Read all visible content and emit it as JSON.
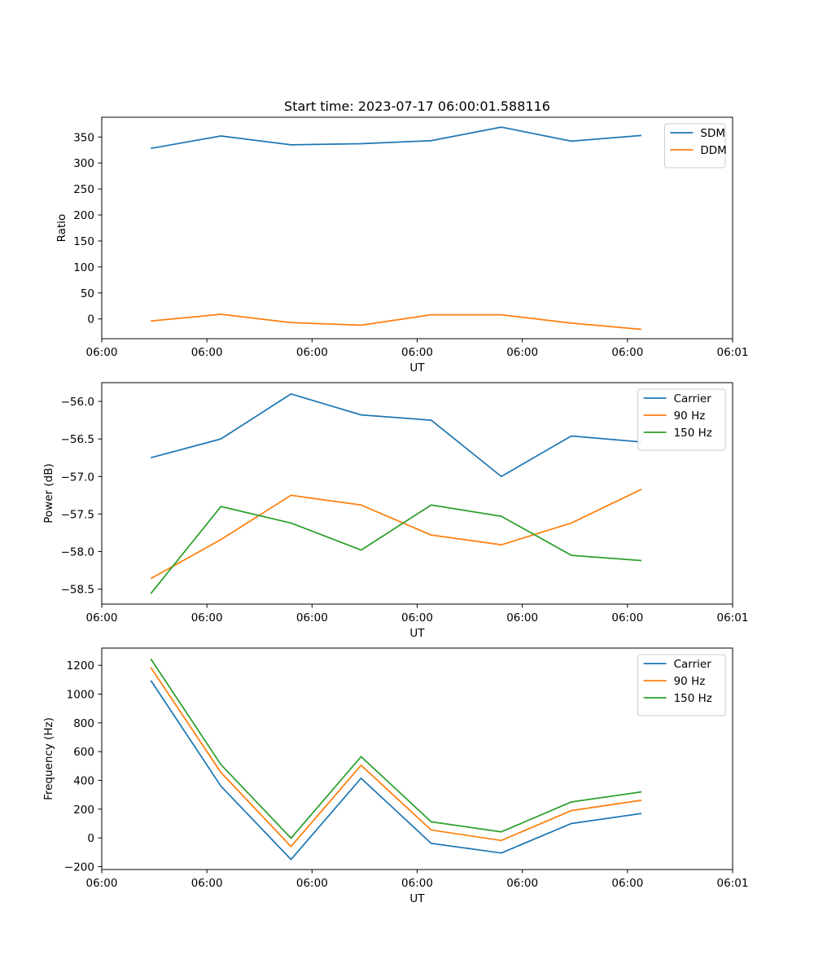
{
  "figure": {
    "title": "Start time: 2023-07-17 06:00:01.588116"
  },
  "chart_data": [
    {
      "type": "line",
      "title": "Start time: 2023-07-17 06:00:01.588116",
      "xlabel": "UT",
      "ylabel": "Ratio",
      "x": [
        1,
        2,
        3,
        4,
        5,
        6,
        7,
        8
      ],
      "xlim": [
        0.3,
        9.3
      ],
      "xticks": [
        0.3,
        1.8,
        3.3,
        4.8,
        6.3,
        7.8,
        9.3
      ],
      "xtick_labels": [
        "06:00",
        "06:00",
        "06:00",
        "06:00",
        "06:00",
        "06:00",
        "06:01"
      ],
      "ylim": [
        -38,
        388
      ],
      "yticks": [
        0,
        50,
        100,
        150,
        200,
        250,
        300,
        350
      ],
      "ytick_labels": [
        "0",
        "50",
        "100",
        "150",
        "200",
        "250",
        "300",
        "350"
      ],
      "legend_position": "top-right",
      "series": [
        {
          "name": "SDM",
          "color": "#1f77b4",
          "values": [
            328,
            352,
            335,
            337,
            343,
            369,
            342,
            353
          ]
        },
        {
          "name": "DDM",
          "color": "#ff7f0e",
          "values": [
            -4,
            9,
            -7,
            -12,
            8,
            8,
            -8,
            -20
          ]
        }
      ]
    },
    {
      "type": "line",
      "title": "",
      "xlabel": "UT",
      "ylabel": "Power (dB)",
      "x": [
        1,
        2,
        3,
        4,
        5,
        6,
        7,
        8
      ],
      "xlim": [
        0.3,
        9.3
      ],
      "xticks": [
        0.3,
        1.8,
        3.3,
        4.8,
        6.3,
        7.8,
        9.3
      ],
      "xtick_labels": [
        "06:00",
        "06:00",
        "06:00",
        "06:00",
        "06:00",
        "06:00",
        "06:01"
      ],
      "ylim": [
        -58.7,
        -55.75
      ],
      "yticks": [
        -58.5,
        -58.0,
        -57.5,
        -57.0,
        -56.5,
        -56.0
      ],
      "ytick_labels": [
        "−58.5",
        "−58.0",
        "−57.5",
        "−57.0",
        "−56.5",
        "−56.0"
      ],
      "legend_position": "top-right",
      "series": [
        {
          "name": "Carrier",
          "color": "#1f77b4",
          "values": [
            -56.75,
            -56.5,
            -55.9,
            -56.18,
            -56.25,
            -57.0,
            -56.46,
            -56.54
          ]
        },
        {
          "name": "90 Hz",
          "color": "#ff7f0e",
          "values": [
            -58.36,
            -57.84,
            -57.25,
            -57.38,
            -57.78,
            -57.91,
            -57.62,
            -57.17
          ]
        },
        {
          "name": "150 Hz",
          "color": "#2ca02c",
          "values": [
            -58.56,
            -57.4,
            -57.62,
            -57.98,
            -57.38,
            -57.53,
            -58.05,
            -58.12
          ]
        }
      ]
    },
    {
      "type": "line",
      "title": "",
      "xlabel": "UT",
      "ylabel": "Frequency (Hz)",
      "x": [
        1,
        2,
        3,
        4,
        5,
        6,
        7,
        8
      ],
      "xlim": [
        0.3,
        9.3
      ],
      "xticks": [
        0.3,
        1.8,
        3.3,
        4.8,
        6.3,
        7.8,
        9.3
      ],
      "xtick_labels": [
        "06:00",
        "06:00",
        "06:00",
        "06:00",
        "06:00",
        "06:00",
        "06:01"
      ],
      "ylim": [
        -220,
        1320
      ],
      "yticks": [
        -200,
        0,
        200,
        400,
        600,
        800,
        1000,
        1200
      ],
      "ytick_labels": [
        "−200",
        "0",
        "200",
        "400",
        "600",
        "800",
        "1000",
        "1200"
      ],
      "legend_position": "top-right",
      "series": [
        {
          "name": "Carrier",
          "color": "#1f77b4",
          "values": [
            1095,
            360,
            -150,
            415,
            -38,
            -105,
            100,
            170
          ]
        },
        {
          "name": "90 Hz",
          "color": "#ff7f0e",
          "values": [
            1185,
            455,
            -60,
            505,
            55,
            -18,
            190,
            262
          ]
        },
        {
          "name": "150 Hz",
          "color": "#2ca02c",
          "values": [
            1245,
            510,
            -2,
            565,
            112,
            42,
            250,
            320
          ]
        }
      ]
    }
  ]
}
